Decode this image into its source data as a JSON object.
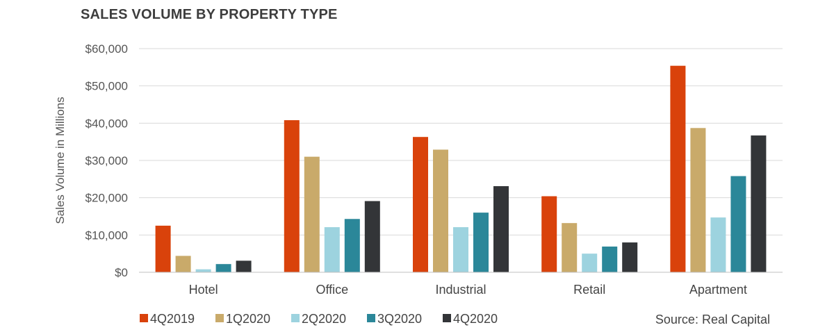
{
  "chart_data": {
    "type": "bar",
    "title": "SALES VOLUME BY PROPERTY TYPE",
    "xlabel": "",
    "ylabel": "Sales Volume in Millions",
    "ylim": [
      0,
      60000
    ],
    "yticks": [
      "$0",
      "$10,000",
      "$20,000",
      "$30,000",
      "$40,000",
      "$50,000",
      "$60,000"
    ],
    "yticks_values": [
      0,
      10000,
      20000,
      30000,
      40000,
      50000,
      60000
    ],
    "grid": true,
    "legend_position": "bottom-left",
    "categories": [
      "Hotel",
      "Office",
      "Industrial",
      "Retail",
      "Apartment"
    ],
    "series": [
      {
        "name": "4Q2019",
        "color": "#d9420b",
        "values": [
          12500,
          40800,
          36300,
          20400,
          55400
        ]
      },
      {
        "name": "1Q2020",
        "color": "#c9aa6a",
        "values": [
          4400,
          31000,
          32900,
          13200,
          38700
        ]
      },
      {
        "name": "2Q2020",
        "color": "#9dd3df",
        "values": [
          800,
          12100,
          12100,
          5000,
          14700
        ]
      },
      {
        "name": "3Q2020",
        "color": "#2b8799",
        "values": [
          2200,
          14300,
          16000,
          6900,
          25800
        ]
      },
      {
        "name": "4Q2020",
        "color": "#333538",
        "values": [
          3100,
          19100,
          23100,
          8000,
          36700
        ]
      }
    ],
    "source": "Source: Real Capital"
  }
}
